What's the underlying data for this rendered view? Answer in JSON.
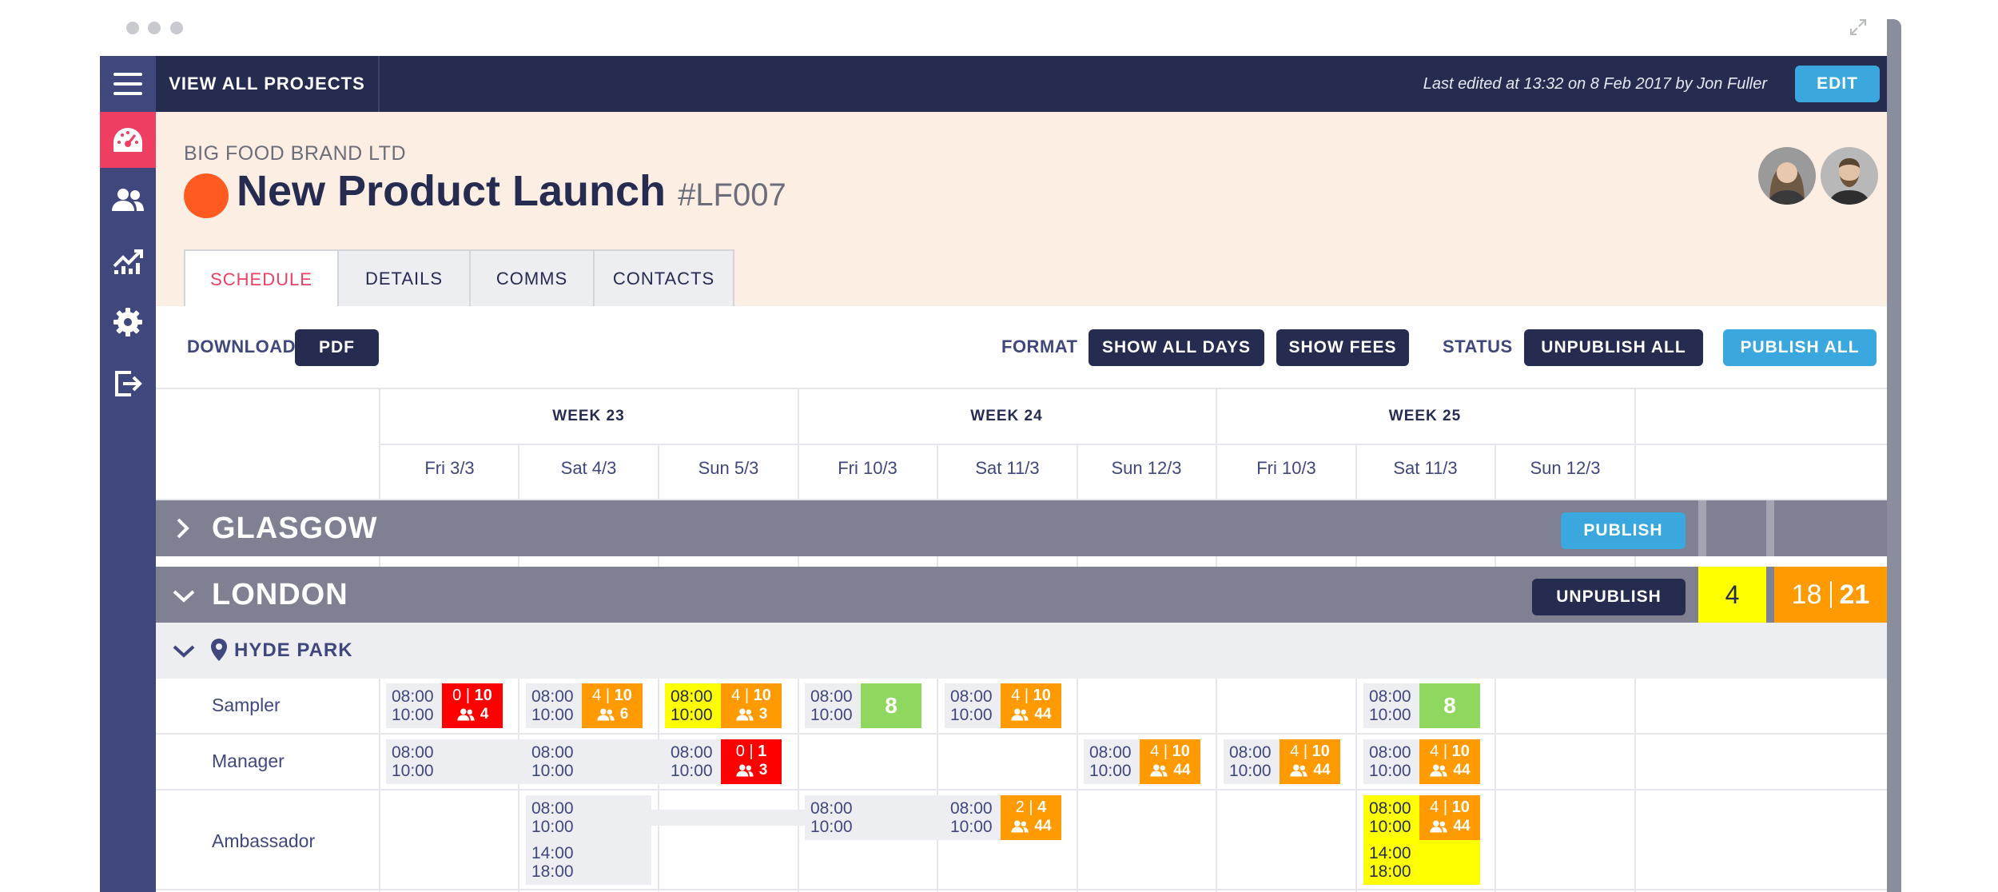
{
  "window": {
    "controls": [
      "close-dot",
      "minimize-dot",
      "maximize-dot"
    ],
    "expand_icon": "expand-icon"
  },
  "sidebar": {
    "items": [
      {
        "name": "menu",
        "icon": "menu-icon"
      },
      {
        "name": "dashboard",
        "icon": "dashboard-icon",
        "active": true
      },
      {
        "name": "people",
        "icon": "people-icon"
      },
      {
        "name": "analytics",
        "icon": "analytics-icon"
      },
      {
        "name": "settings",
        "icon": "gear-icon"
      },
      {
        "name": "logout",
        "icon": "logout-icon"
      }
    ]
  },
  "topbar": {
    "view_all": "VIEW ALL PROJECTS",
    "last_edited": "Last edited at 13:32 on 8 Feb 2017 by Jon Fuller",
    "edit": "EDIT"
  },
  "project": {
    "client": "BIG FOOD BRAND LTD",
    "title": "New Product Launch",
    "code": "#LF007",
    "status_color": "#ff5a1f"
  },
  "tabs": [
    {
      "label": "SCHEDULE",
      "active": true
    },
    {
      "label": "DETAILS"
    },
    {
      "label": "COMMS"
    },
    {
      "label": "CONTACTS"
    }
  ],
  "toolbar": {
    "download_label": "DOWNLOAD",
    "pdf": "PDF",
    "format_label": "FORMAT",
    "show_all_days": "SHOW ALL DAYS",
    "show_fees": "SHOW FEES",
    "status_label": "STATUS",
    "unpublish_all": "UNPUBLISH ALL",
    "publish_all": "PUBLISH ALL"
  },
  "schedule": {
    "weeks": [
      "WEEK 23",
      "WEEK 24",
      "WEEK 25"
    ],
    "days": [
      "Fri 3/3",
      "Sat 4/3",
      "Sun 5/3",
      "Fri 10/3",
      "Sat 11/3",
      "Sun 12/3",
      "Fri 10/3",
      "Sat 11/3",
      "Sun 12/3"
    ],
    "groups": [
      {
        "name": "GLASGOW",
        "action": "PUBLISH"
      },
      {
        "name": "LONDON",
        "action": "UNPUBLISH",
        "summary_count": "4",
        "summary_a": "18",
        "summary_b": "21"
      }
    ],
    "venue": "HYDE PARK",
    "roles": [
      "Sampler",
      "Manager",
      "Ambassador"
    ],
    "shifts": {
      "sampler": [
        {
          "start": "08:00",
          "end": "10:00",
          "a": "0",
          "b": "10",
          "people": "4"
        },
        {
          "start": "08:00",
          "end": "10:00",
          "a": "4",
          "b": "10",
          "people": "6"
        },
        {
          "start": "08:00",
          "end": "10:00",
          "a": "4",
          "b": "10",
          "people": "3"
        },
        {
          "start": "08:00",
          "end": "10:00",
          "count": "8"
        },
        {
          "start": "08:00",
          "end": "10:00",
          "a": "4",
          "b": "10",
          "people": "44"
        },
        {
          "start": "08:00",
          "end": "10:00",
          "count": "8"
        }
      ],
      "manager": [
        {
          "start": "08:00",
          "end": "10:00"
        },
        {
          "start": "08:00",
          "end": "10:00"
        },
        {
          "start": "08:00",
          "end": "10:00",
          "a": "0",
          "b": "1",
          "people": "3"
        },
        {
          "start": "08:00",
          "end": "10:00",
          "a": "4",
          "b": "10",
          "people": "44"
        },
        {
          "start": "08:00",
          "end": "10:00",
          "a": "4",
          "b": "10",
          "people": "44"
        },
        {
          "start": "08:00",
          "end": "10:00",
          "a": "4",
          "b": "10",
          "people": "44"
        }
      ],
      "ambassador": [
        {
          "start": "08:00",
          "end": "10:00",
          "start2": "14:00",
          "end2": "18:00"
        },
        {
          "start": "08:00",
          "end": "10:00"
        },
        {
          "start": "08:00",
          "end": "10:00",
          "a": "2",
          "b": "4",
          "people": "44"
        },
        {
          "start": "08:00",
          "end": "10:00",
          "a": "4",
          "b": "10",
          "people": "44",
          "start2": "14:00",
          "end2": "18:00"
        }
      ]
    }
  },
  "colors": {
    "navy": "#262c50",
    "sidebar": "#3f477d",
    "accent_pink": "#f03e63",
    "blue": "#3aa7de",
    "orange": "#ff9a00",
    "red": "#ff0000",
    "green": "#8fd75f",
    "yellow": "#ffff00",
    "group_grey": "#7f8192"
  }
}
